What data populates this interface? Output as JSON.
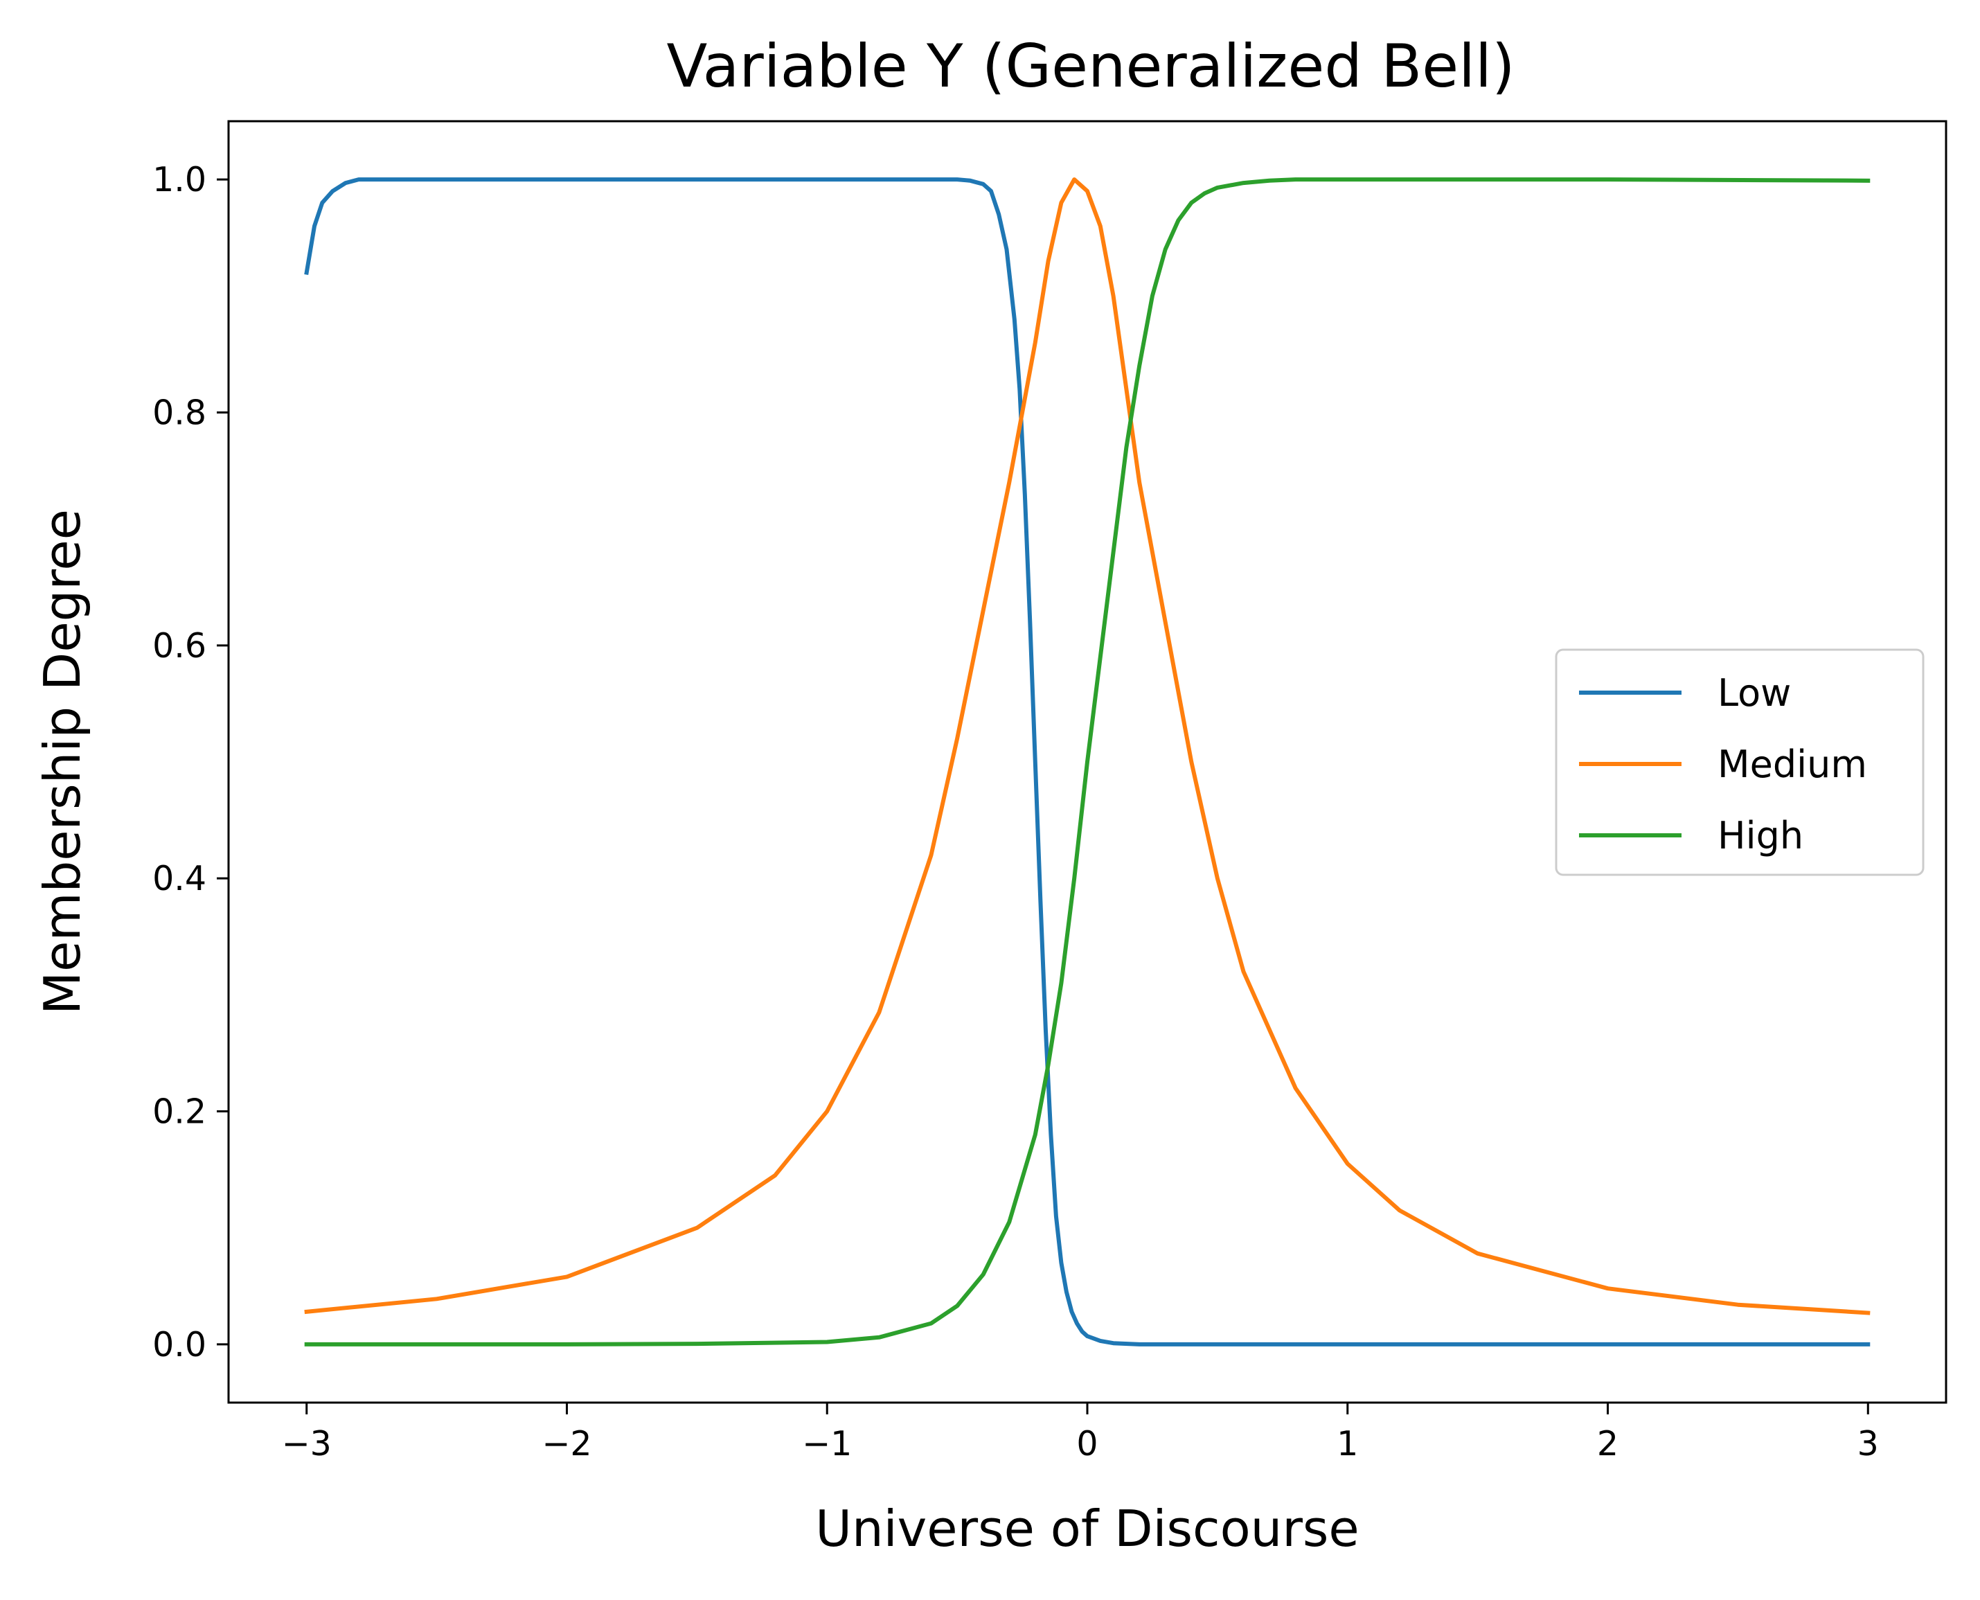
{
  "chart_data": {
    "type": "line",
    "title": "Variable Y (Generalized Bell)",
    "xlabel": "Universe of Discourse",
    "ylabel": "Membership Degree",
    "xlim": [
      -3.3,
      3.3
    ],
    "ylim": [
      -0.05,
      1.05
    ],
    "xticks": [
      -3,
      -2,
      -1,
      0,
      1,
      2,
      3
    ],
    "xtick_labels": [
      "−3",
      "−2",
      "−1",
      "0",
      "1",
      "2",
      "3"
    ],
    "yticks": [
      0.0,
      0.2,
      0.4,
      0.6,
      0.8,
      1.0
    ],
    "ytick_labels": [
      "0.0",
      "0.2",
      "0.4",
      "0.6",
      "0.8",
      "1.0"
    ],
    "grid": false,
    "legend": {
      "placement": "center-right",
      "entries": [
        "Low",
        "Medium",
        "High"
      ]
    },
    "series": [
      {
        "name": "Low",
        "color": "#1f77b4",
        "x": [
          -3.0,
          -2.97,
          -2.94,
          -2.9,
          -2.85,
          -2.8,
          -2.7,
          -2.5,
          -2.0,
          -1.5,
          -1.0,
          -0.6,
          -0.5,
          -0.45,
          -0.4,
          -0.37,
          -0.34,
          -0.31,
          -0.28,
          -0.26,
          -0.24,
          -0.22,
          -0.2,
          -0.18,
          -0.16,
          -0.14,
          -0.12,
          -0.1,
          -0.08,
          -0.06,
          -0.04,
          -0.02,
          0.0,
          0.05,
          0.1,
          0.2,
          0.5,
          1.0,
          2.0,
          3.0
        ],
        "y": [
          0.92,
          0.96,
          0.98,
          0.99,
          0.997,
          1.0,
          1.0,
          1.0,
          1.0,
          1.0,
          1.0,
          1.0,
          1.0,
          0.999,
          0.996,
          0.99,
          0.97,
          0.94,
          0.88,
          0.82,
          0.73,
          0.62,
          0.5,
          0.38,
          0.27,
          0.18,
          0.11,
          0.07,
          0.045,
          0.028,
          0.018,
          0.011,
          0.007,
          0.003,
          0.001,
          0.0,
          0.0,
          0.0,
          0.0,
          0.0
        ]
      },
      {
        "name": "Medium",
        "color": "#ff7f0e",
        "x": [
          -3.0,
          -2.5,
          -2.0,
          -1.5,
          -1.2,
          -1.0,
          -0.8,
          -0.6,
          -0.5,
          -0.4,
          -0.3,
          -0.25,
          -0.2,
          -0.15,
          -0.1,
          -0.05,
          0.0,
          0.05,
          0.1,
          0.15,
          0.2,
          0.3,
          0.4,
          0.5,
          0.6,
          0.8,
          1.0,
          1.2,
          1.5,
          2.0,
          2.5,
          3.0
        ],
        "y": [
          0.028,
          0.039,
          0.058,
          0.1,
          0.145,
          0.2,
          0.285,
          0.42,
          0.52,
          0.63,
          0.74,
          0.8,
          0.86,
          0.93,
          0.98,
          1.0,
          0.99,
          0.96,
          0.9,
          0.82,
          0.74,
          0.62,
          0.5,
          0.4,
          0.32,
          0.22,
          0.155,
          0.115,
          0.078,
          0.048,
          0.034,
          0.027
        ]
      },
      {
        "name": "High",
        "color": "#2ca02c",
        "x": [
          -3.0,
          -2.0,
          -1.5,
          -1.0,
          -0.8,
          -0.6,
          -0.5,
          -0.4,
          -0.3,
          -0.2,
          -0.15,
          -0.1,
          -0.05,
          0.0,
          0.05,
          0.1,
          0.15,
          0.2,
          0.25,
          0.3,
          0.35,
          0.4,
          0.45,
          0.5,
          0.6,
          0.7,
          0.8,
          1.0,
          1.5,
          2.0,
          3.0
        ],
        "y": [
          0.0,
          0.0,
          0.0005,
          0.002,
          0.006,
          0.018,
          0.033,
          0.06,
          0.105,
          0.18,
          0.24,
          0.31,
          0.4,
          0.5,
          0.59,
          0.68,
          0.77,
          0.84,
          0.9,
          0.94,
          0.965,
          0.98,
          0.988,
          0.993,
          0.997,
          0.999,
          1.0,
          1.0,
          1.0,
          1.0,
          0.999
        ]
      }
    ]
  }
}
